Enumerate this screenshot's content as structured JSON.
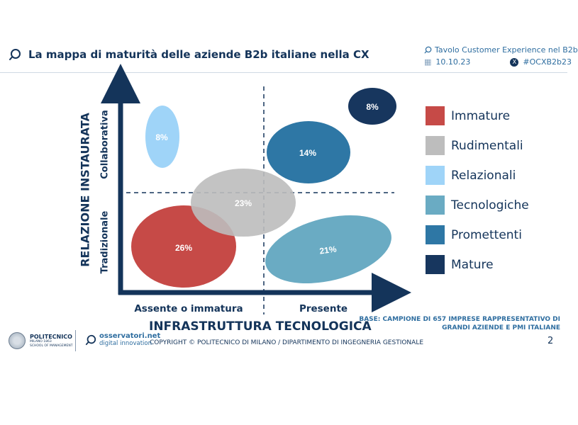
{
  "header": {
    "title": "La mappa di maturità delle aziende B2b italiane nella CX",
    "event": "Tavolo Customer Experience nel B2b",
    "date": "10.10.23",
    "hashtag": "#OCXB2b23"
  },
  "diagram": {
    "y_title": "RELAZIONE INSTAURATA",
    "y_categories": [
      "Collaborativa",
      "Tradizionale"
    ],
    "x_title": "INFRASTRUTTURA TECNOLOGICA",
    "x_categories": [
      "Assente o immatura",
      "Presente"
    ],
    "clusters": [
      {
        "name": "Immature",
        "label": "26%",
        "share": 26,
        "color": "#c64a47"
      },
      {
        "name": "Rudimentali",
        "label": "23%",
        "share": 23,
        "color": "#bdbdbd"
      },
      {
        "name": "Relazionali",
        "label": "8%",
        "share": 8,
        "color": "#9fd4f8"
      },
      {
        "name": "Tecnologiche",
        "label": "21%",
        "share": 21,
        "color": "#6aabc3"
      },
      {
        "name": "Promettenti",
        "label": "14%",
        "share": 14,
        "color": "#2e77a5"
      },
      {
        "name": "Mature",
        "label": "8%",
        "share": 8,
        "color": "#17365e"
      }
    ]
  },
  "footer": {
    "base_note": "BASE: CAMPIONE DI 657 IMPRESE RAPPRESENTATIVO DI GRANDI AZIENDE E PMI ITALIANE",
    "copyright": "COPYRIGHT © POLITECNICO DI MILANO / DIPARTIMENTO DI INGEGNERIA GESTIONALE",
    "page": "2",
    "logo_politecnico": {
      "name": "POLITECNICO",
      "sub1": "MILANO 1863",
      "sub2": "SCHOOL OF MANAGEMENT"
    },
    "logo_osservatori": {
      "line1": "osservatori.net",
      "line2": "digital innovation"
    }
  },
  "colors": {
    "navy": "#14345a",
    "accent": "#2f6ea0"
  }
}
